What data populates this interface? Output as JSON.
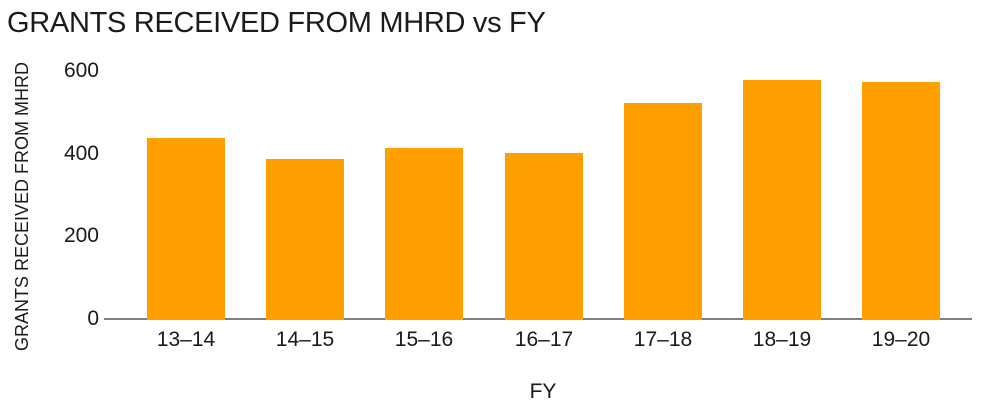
{
  "chart_data": {
    "type": "bar",
    "title": "GRANTS RECEIVED FROM MHRD vs FY",
    "xlabel": "FY",
    "ylabel": "GRANTS RECEIVED FROM MHRD",
    "categories": [
      "13–14",
      "14–15",
      "15–16",
      "16–17",
      "17–18",
      "18–19",
      "19–20"
    ],
    "values": [
      440,
      390,
      415,
      405,
      525,
      580,
      575
    ],
    "yticks": [
      0,
      200,
      400,
      600
    ],
    "ylim": [
      0,
      600
    ],
    "grid": false,
    "legend": false,
    "colors": {
      "bar": "#FFA000",
      "axis_line": "#7F7F7F",
      "text": "#1A1A1A"
    }
  }
}
